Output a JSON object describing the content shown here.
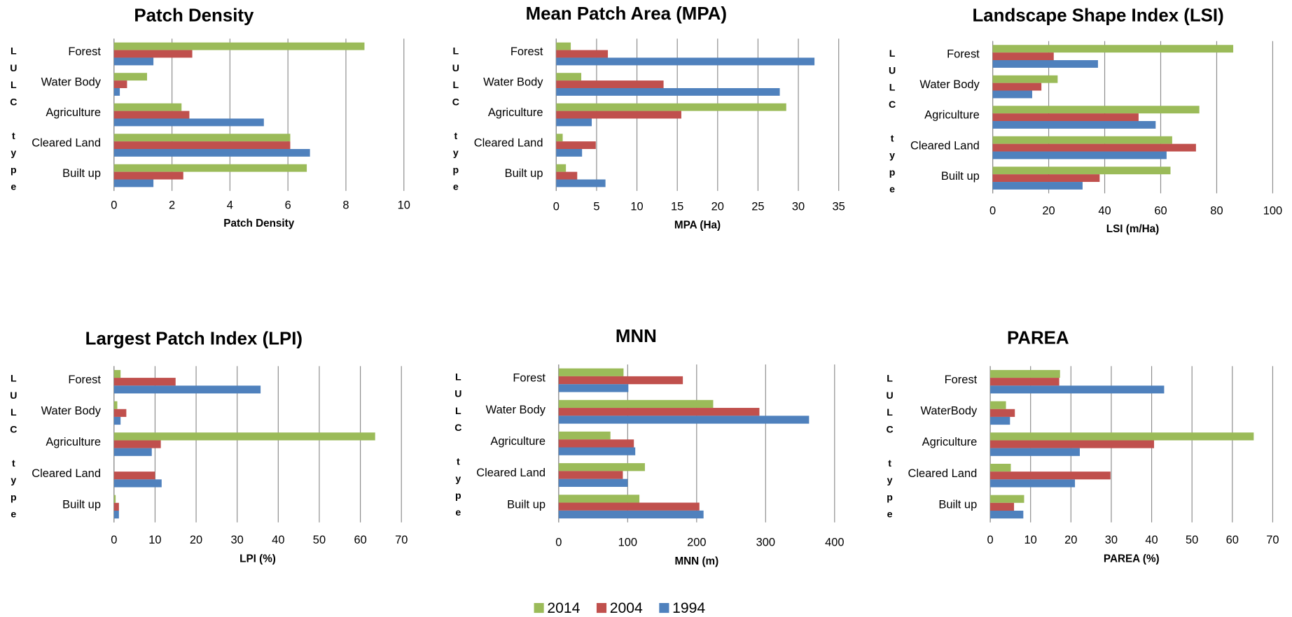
{
  "chart_data": [
    {
      "type": "bar",
      "title": "Patch Density",
      "xlabel": "Patch Density",
      "ylabel": "LULC type",
      "categories": [
        "Forest",
        "Water Body",
        "Agriculture",
        "Cleared Land",
        "Built up"
      ],
      "series": [
        {
          "name": "2014",
          "color": "#9bbb59",
          "values": [
            8.64,
            1.14,
            2.33,
            6.08,
            6.65
          ]
        },
        {
          "name": "2004",
          "color": "#c0504d",
          "values": [
            2.7,
            0.45,
            2.6,
            6.08,
            2.39
          ]
        },
        {
          "name": "1994",
          "color": "#4f81bd",
          "values": [
            1.36,
            0.2,
            5.17,
            6.76,
            1.36
          ]
        }
      ],
      "xlim": [
        0,
        10
      ],
      "xticks": [
        0,
        2,
        4,
        6,
        8,
        10
      ],
      "grid": true
    },
    {
      "type": "bar",
      "title": "Mean Patch Area (MPA)",
      "xlabel": "MPA (Ha)",
      "ylabel": "LULC type",
      "categories": [
        "Forest",
        "Water Body",
        "Agriculture",
        "Cleared Land",
        "Built up"
      ],
      "series": [
        {
          "name": "2014",
          "color": "#9bbb59",
          "values": [
            1.8,
            3.1,
            28.5,
            0.8,
            1.2
          ]
        },
        {
          "name": "2004",
          "color": "#c0504d",
          "values": [
            6.4,
            13.3,
            15.5,
            4.9,
            2.6
          ]
        },
        {
          "name": "1994",
          "color": "#4f81bd",
          "values": [
            32.0,
            27.7,
            4.4,
            3.2,
            6.1
          ]
        }
      ],
      "xlim": [
        0,
        35
      ],
      "xticks": [
        0,
        5,
        10,
        15,
        20,
        25,
        30,
        35
      ],
      "grid": true
    },
    {
      "type": "bar",
      "title": "Landscape Shape Index (LSI)",
      "xlabel": "LSI (m/Ha)",
      "ylabel": "LULC type",
      "categories": [
        "Forest",
        "Water Body",
        "Agriculture",
        "Cleared Land",
        "Built up"
      ],
      "series": [
        {
          "name": "2014",
          "color": "#9bbb59",
          "values": [
            85.9,
            23.2,
            73.8,
            64.1,
            63.5
          ]
        },
        {
          "name": "2004",
          "color": "#c0504d",
          "values": [
            21.8,
            17.4,
            52.1,
            72.6,
            38.2
          ]
        },
        {
          "name": "1994",
          "color": "#4f81bd",
          "values": [
            37.6,
            14.1,
            58.2,
            62.1,
            32.1
          ]
        }
      ],
      "xlim": [
        0,
        100
      ],
      "xticks": [
        0,
        20,
        40,
        60,
        80,
        100
      ],
      "grid": true
    },
    {
      "type": "bar",
      "title": "Largest Patch Index (LPI)",
      "xlabel": "LPI (%)",
      "ylabel": "LULC type",
      "categories": [
        "Forest",
        "Water Body",
        "Agriculture",
        "Cleared Land",
        "Built up"
      ],
      "series": [
        {
          "name": "2014",
          "color": "#9bbb59",
          "values": [
            1.6,
            0.8,
            63.6,
            0,
            0.4
          ]
        },
        {
          "name": "2004",
          "color": "#c0504d",
          "values": [
            15.0,
            3.0,
            11.4,
            10.0,
            1.2
          ]
        },
        {
          "name": "1994",
          "color": "#4f81bd",
          "values": [
            35.7,
            1.6,
            9.2,
            11.6,
            1.2
          ]
        }
      ],
      "xlim": [
        0,
        70
      ],
      "xticks": [
        0,
        10,
        20,
        30,
        40,
        50,
        60,
        70
      ],
      "grid": true
    },
    {
      "type": "bar",
      "title": "MNN",
      "xlabel": "MNN (m)",
      "ylabel": "LULC type",
      "categories": [
        "Forest",
        "Water Body",
        "Agriculture",
        "Cleared Land",
        "Built up"
      ],
      "series": [
        {
          "name": "2014",
          "color": "#9bbb59",
          "values": [
            94,
            224,
            75,
            125,
            117
          ]
        },
        {
          "name": "2004",
          "color": "#c0504d",
          "values": [
            180,
            291,
            109,
            93,
            204
          ]
        },
        {
          "name": "1994",
          "color": "#4f81bd",
          "values": [
            101,
            363,
            111,
            100,
            210
          ]
        }
      ],
      "xlim": [
        0,
        400
      ],
      "xticks": [
        0,
        100,
        200,
        300,
        400
      ],
      "grid": true
    },
    {
      "type": "bar",
      "title": "PAREA",
      "xlabel": "PAREA (%)",
      "ylabel": "LULC type",
      "categories": [
        "Forest",
        "WaterBody",
        "Agriculture",
        "Cleared Land",
        "Built up"
      ],
      "series": [
        {
          "name": "2014",
          "color": "#9bbb59",
          "values": [
            17.3,
            3.9,
            65.3,
            5.1,
            8.4
          ]
        },
        {
          "name": "2004",
          "color": "#c0504d",
          "values": [
            17.1,
            6.1,
            40.6,
            29.8,
            5.9
          ]
        },
        {
          "name": "1994",
          "color": "#4f81bd",
          "values": [
            43.1,
            4.9,
            22.2,
            21.0,
            8.2
          ]
        }
      ],
      "xlim": [
        0,
        70
      ],
      "xticks": [
        0,
        10,
        20,
        30,
        40,
        50,
        60,
        70
      ],
      "grid": true
    }
  ]
}
